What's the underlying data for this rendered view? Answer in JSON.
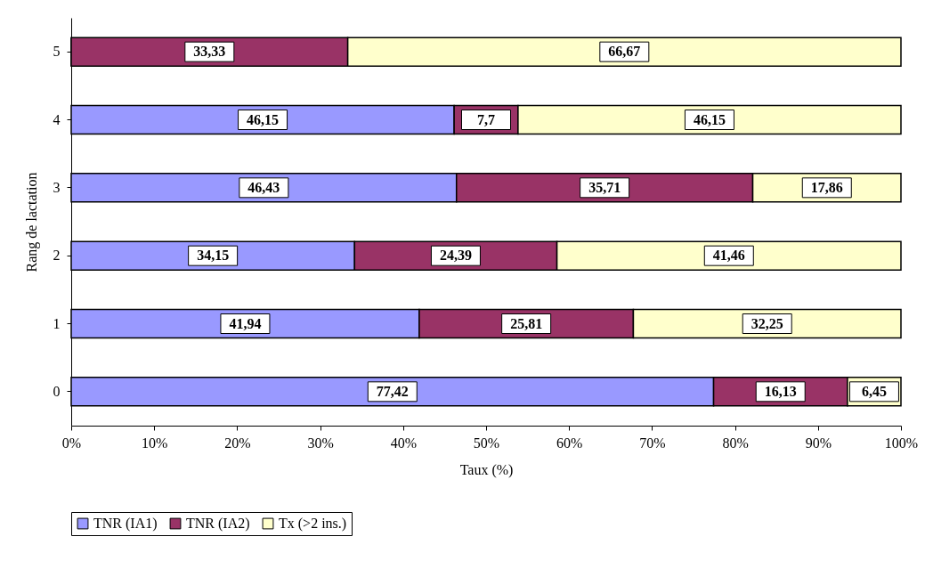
{
  "chart_data": {
    "type": "bar",
    "orientation": "horizontal",
    "stacked": true,
    "xlabel": "Taux (%)",
    "ylabel": "Rang de lactation",
    "categories": [
      "5",
      "4",
      "3",
      "2",
      "1",
      "0"
    ],
    "series": [
      {
        "name": "TNR (IA1)",
        "color": "#9999ff",
        "values": [
          0,
          46.15,
          46.43,
          34.15,
          41.94,
          77.42
        ],
        "value_labels": [
          null,
          "46,15",
          "46,43",
          "34,15",
          "41,94",
          "77,42"
        ]
      },
      {
        "name": "TNR (IA2)",
        "color": "#993366",
        "values": [
          33.33,
          7.7,
          35.71,
          24.39,
          25.81,
          16.13
        ],
        "value_labels": [
          "33,33",
          "7,7",
          "35,71",
          "24,39",
          "25,81",
          "16,13"
        ]
      },
      {
        "name": "Tx (>2 ins.)",
        "color": "#ffffcc",
        "values": [
          66.67,
          46.15,
          17.86,
          41.46,
          32.25,
          6.45
        ],
        "value_labels": [
          "66,67",
          "46,15",
          "17,86",
          "41,46",
          "32,25",
          "6,45"
        ]
      }
    ],
    "xlim": [
      0,
      100
    ],
    "xticks": [
      {
        "value": 0,
        "label": "0%"
      },
      {
        "value": 10,
        "label": "10%"
      },
      {
        "value": 20,
        "label": "20%"
      },
      {
        "value": 30,
        "label": "30%"
      },
      {
        "value": 40,
        "label": "40%"
      },
      {
        "value": 50,
        "label": "50%"
      },
      {
        "value": 60,
        "label": "60%"
      },
      {
        "value": 70,
        "label": "70%"
      },
      {
        "value": 80,
        "label": "80%"
      },
      {
        "value": 90,
        "label": "90%"
      },
      {
        "value": 100,
        "label": "100%"
      }
    ],
    "grid": false,
    "legend": "bottom"
  }
}
